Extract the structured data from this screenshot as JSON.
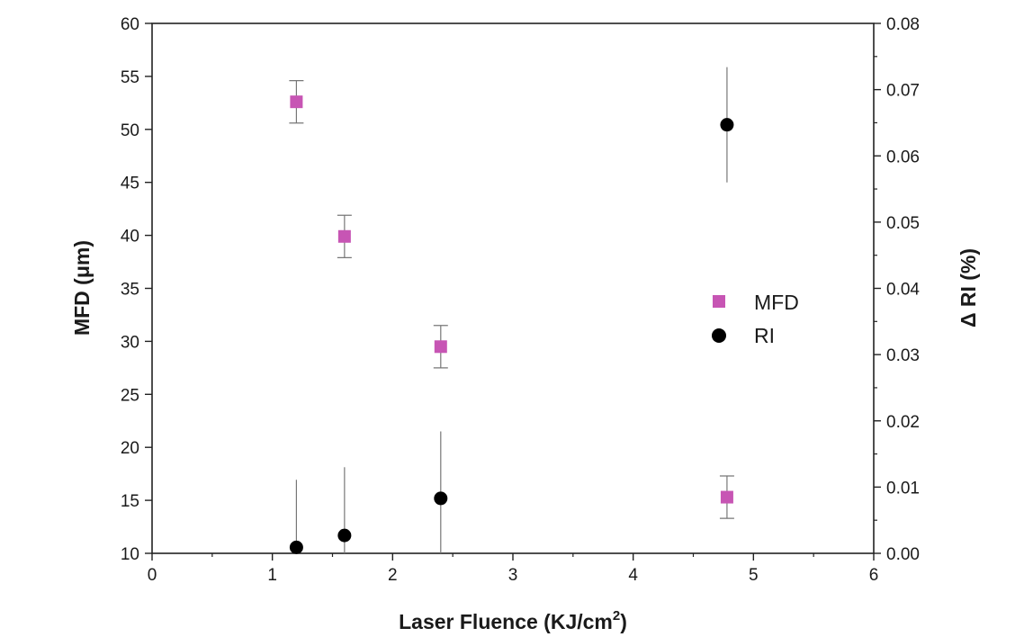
{
  "chart_data": {
    "type": "scatter",
    "title": "",
    "x_axis": {
      "label_main": "Laser Fluence (KJ/cm",
      "label_sup": "2",
      "label_end": ")",
      "range": [
        0,
        6
      ],
      "ticks": [
        "0",
        "1",
        "2",
        "3",
        "4",
        "5",
        "6"
      ]
    },
    "y_axis_left": {
      "label": "MFD (μm)",
      "range": [
        10,
        60
      ],
      "ticks": [
        "10",
        "15",
        "20",
        "25",
        "30",
        "35",
        "40",
        "45",
        "50",
        "55",
        "60"
      ]
    },
    "y_axis_right": {
      "label": "Δ RI (%)",
      "range": [
        0,
        0.08
      ],
      "ticks": [
        "0.00",
        "0.01",
        "0.02",
        "0.03",
        "0.04",
        "0.05",
        "0.06",
        "0.07",
        "0.08"
      ]
    },
    "grid": false,
    "legend_position": "right-middle",
    "series": [
      {
        "name": "MFD",
        "axis": "left",
        "marker": "square",
        "color": "#c755b4",
        "points": [
          {
            "x": 1.2,
            "y": 52.6,
            "err": 2.0
          },
          {
            "x": 1.6,
            "y": 39.9,
            "err": 2.0
          },
          {
            "x": 2.4,
            "y": 29.5,
            "err": 2.0
          },
          {
            "x": 4.78,
            "y": 15.3,
            "err": 2.0
          }
        ]
      },
      {
        "name": "RI",
        "axis": "right",
        "marker": "circle",
        "color": "#000000",
        "points": [
          {
            "x": 1.2,
            "y": 0.0009,
            "err": 0.0102
          },
          {
            "x": 1.6,
            "y": 0.0027,
            "err": 0.0103
          },
          {
            "x": 2.4,
            "y": 0.0083,
            "err": 0.0101
          },
          {
            "x": 4.78,
            "y": 0.0647,
            "err": 0.0087
          }
        ]
      }
    ]
  }
}
